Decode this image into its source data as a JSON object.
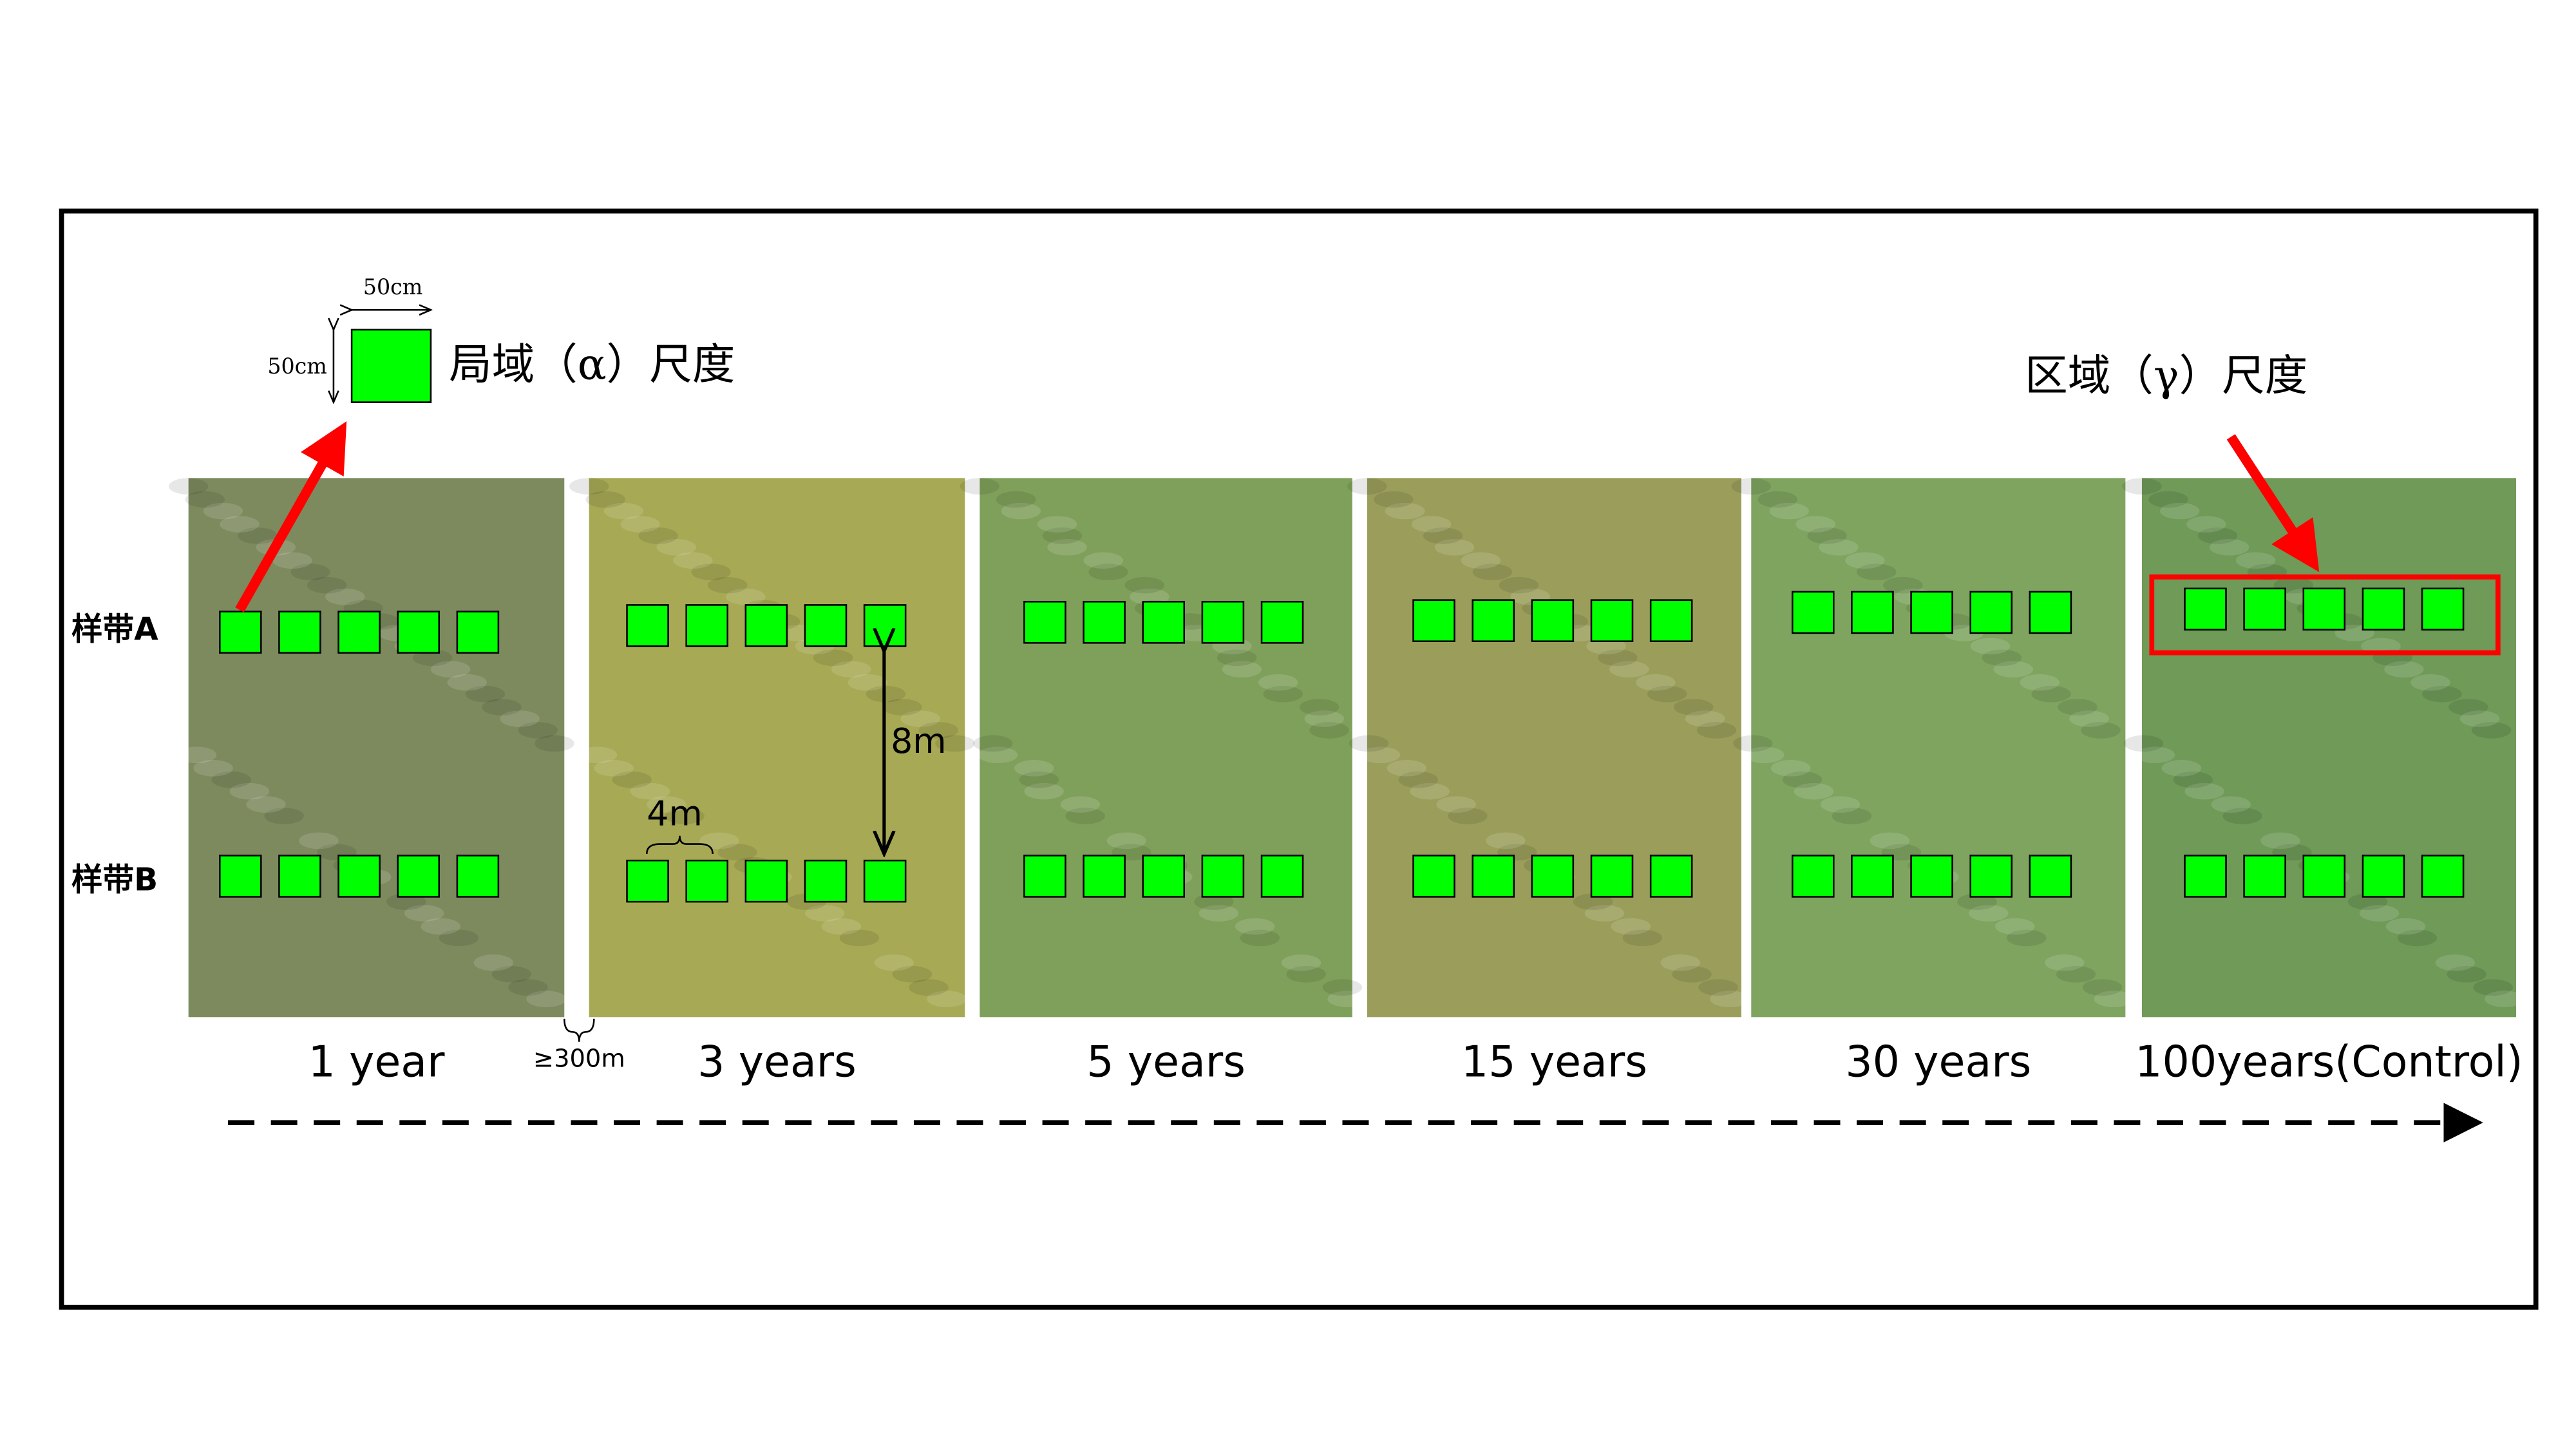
{
  "scale_legend": {
    "width_label": "50cm",
    "height_label": "50cm",
    "local_scale": "局域（α）尺度",
    "regional_scale": "区域（γ）尺度"
  },
  "transects": {
    "a": "样带A",
    "b": "样带B"
  },
  "distances": {
    "row_spacing": "8m",
    "plot_spacing": "4m",
    "site_spacing": "≥300m"
  },
  "panels": [
    "1 year",
    "3 years",
    "5 years",
    "15 years",
    "30 years",
    "100years(Control)"
  ]
}
